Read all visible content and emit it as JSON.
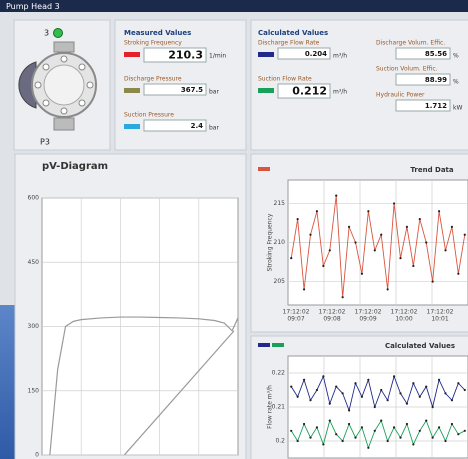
{
  "header": {
    "title": "Pump Head 3"
  },
  "pump": {
    "number": "3",
    "label": "P3"
  },
  "measured": {
    "title": "Measured Values",
    "items": [
      {
        "label": "Stroking Frequency",
        "value": "210.3",
        "unit": "1/min",
        "color": "#e3202b"
      },
      {
        "label": "Discharge Pressure",
        "value": "367.5",
        "unit": "bar",
        "color": "#8c8a4a"
      },
      {
        "label": "Suction Pressure",
        "value": "2.4",
        "unit": "bar",
        "color": "#2aa9e0"
      }
    ]
  },
  "calculated": {
    "title": "Calculated Values",
    "items": [
      {
        "label": "Discharge Flow Rate",
        "value": "0.204",
        "unit": "m³/h",
        "color": "#1f2a8c"
      },
      {
        "label": "Suction Flow Rate",
        "value": "0.212",
        "unit": "m³/h",
        "color": "#1aa05a"
      },
      {
        "label": "Discharge Volum. Effic.",
        "value": "85.56",
        "unit": "%"
      },
      {
        "label": "Suction Volum. Effic.",
        "value": "88.99",
        "unit": "%"
      },
      {
        "label": "Hydraulic Power",
        "value": "1.712",
        "unit": "kW"
      }
    ]
  },
  "chart_data": [
    {
      "type": "line",
      "title": "pV-Diagram",
      "xlim": [
        0,
        100
      ],
      "ylim": [
        0,
        600
      ],
      "yticks": [
        0,
        150,
        300,
        450,
        600
      ],
      "grid": true,
      "series": [
        {
          "color": "#9a9a9a",
          "x": [
            4,
            8,
            12,
            16,
            20,
            30,
            40,
            50,
            60,
            70,
            80,
            88,
            93,
            97,
            100
          ],
          "values": [
            0,
            200,
            300,
            312,
            316,
            320,
            322,
            322,
            321,
            320,
            318,
            314,
            308,
            290,
            320
          ]
        },
        {
          "color": "#9a9a9a",
          "x": [
            42,
            98
          ],
          "values": [
            0,
            290
          ]
        }
      ]
    },
    {
      "type": "line",
      "title": "Trend Data",
      "ylabel": "Stroking Frequency",
      "ylim": [
        202,
        218
      ],
      "yticks": [
        205,
        210,
        215
      ],
      "grid": true,
      "xtick_dates": [
        "17:12:02",
        "17:12:02",
        "17:12:02",
        "17:12:02",
        "17:12:02"
      ],
      "xtick_times": [
        "09:07",
        "09:08",
        "09:09",
        "10:00",
        "10:01"
      ],
      "series": [
        {
          "color": "#d9553f",
          "values": [
            208,
            213,
            204,
            211,
            214,
            207,
            209,
            216,
            203,
            212,
            210,
            206,
            214,
            209,
            211,
            204,
            215,
            208,
            212,
            207,
            213,
            210,
            205,
            214,
            209,
            212,
            206,
            211
          ]
        }
      ]
    },
    {
      "type": "line",
      "title": "Calculated Values",
      "ylabel": "Flow rate m³/h",
      "ylim": [
        0.195,
        0.225
      ],
      "yticks": [
        0.2,
        0.21,
        0.22
      ],
      "grid": true,
      "series": [
        {
          "color": "#1f2a8c",
          "values": [
            0.216,
            0.213,
            0.218,
            0.212,
            0.215,
            0.219,
            0.211,
            0.216,
            0.214,
            0.209,
            0.217,
            0.213,
            0.218,
            0.21,
            0.215,
            0.212,
            0.219,
            0.214,
            0.211,
            0.217,
            0.213,
            0.216,
            0.21,
            0.218,
            0.214,
            0.212,
            0.217,
            0.215
          ]
        },
        {
          "color": "#1aa05a",
          "values": [
            0.203,
            0.2,
            0.205,
            0.201,
            0.204,
            0.199,
            0.206,
            0.202,
            0.2,
            0.205,
            0.201,
            0.204,
            0.198,
            0.203,
            0.206,
            0.2,
            0.204,
            0.201,
            0.205,
            0.199,
            0.203,
            0.206,
            0.201,
            0.204,
            0.2,
            0.205,
            0.202,
            0.203
          ]
        }
      ]
    }
  ]
}
